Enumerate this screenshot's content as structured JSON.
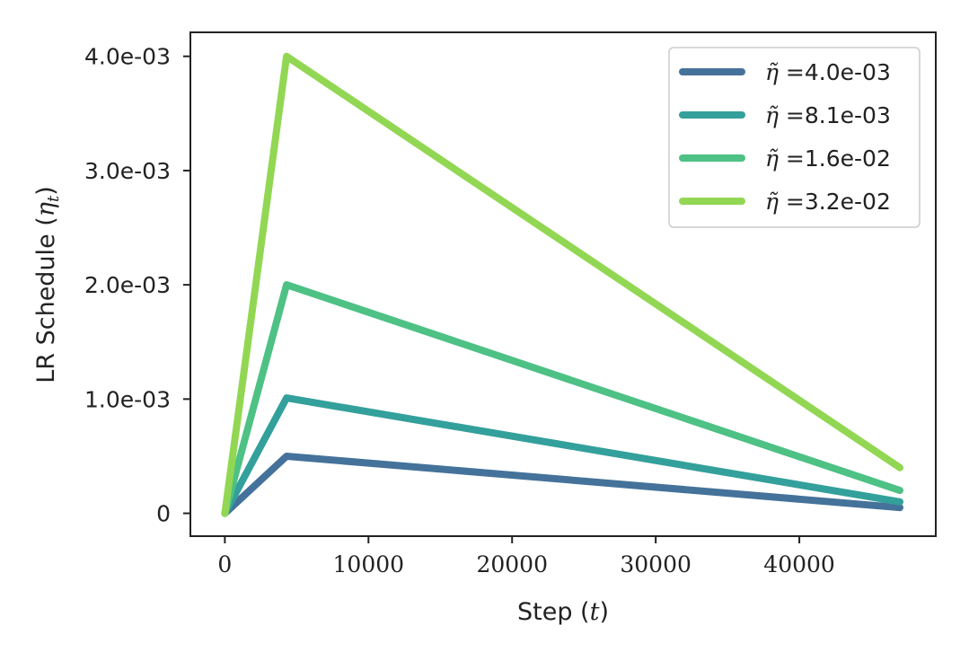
{
  "chart_data": {
    "type": "line",
    "title": "",
    "xlabel": "Step",
    "xlabel_var": "t",
    "ylabel": "LR Schedule",
    "ylabel_var": "η",
    "ylabel_sub": "t",
    "xlim": [
      -2400,
      49500
    ],
    "ylim": [
      -0.0002,
      0.00421
    ],
    "x_ticks": [
      0,
      10000,
      20000,
      30000,
      40000
    ],
    "x_tick_labels": [
      "0",
      "10000",
      "20000",
      "30000",
      "40000"
    ],
    "y_ticks": [
      0,
      0.001,
      0.002,
      0.003,
      0.004
    ],
    "y_tick_labels": [
      "0",
      "1.0e-03",
      "2.0e-03",
      "3.0e-03",
      "4.0e-03"
    ],
    "grid": false,
    "legend_position": "top-right",
    "legend_symbol": "η̃",
    "series": [
      {
        "name": "4.0e-03",
        "color": "#44729A",
        "x": [
          0,
          4300,
          47000
        ],
        "y": [
          0,
          0.0005,
          5e-05
        ]
      },
      {
        "name": "8.1e-03",
        "color": "#33A09B",
        "x": [
          0,
          4300,
          47000
        ],
        "y": [
          0,
          0.00101,
          0.0001
        ]
      },
      {
        "name": "1.6e-02",
        "color": "#4EC185",
        "x": [
          0,
          4300,
          47000
        ],
        "y": [
          0,
          0.002,
          0.0002
        ]
      },
      {
        "name": "3.2e-02",
        "color": "#92D753",
        "x": [
          0,
          4300,
          47000
        ],
        "y": [
          0,
          0.004,
          0.0004
        ]
      }
    ]
  }
}
